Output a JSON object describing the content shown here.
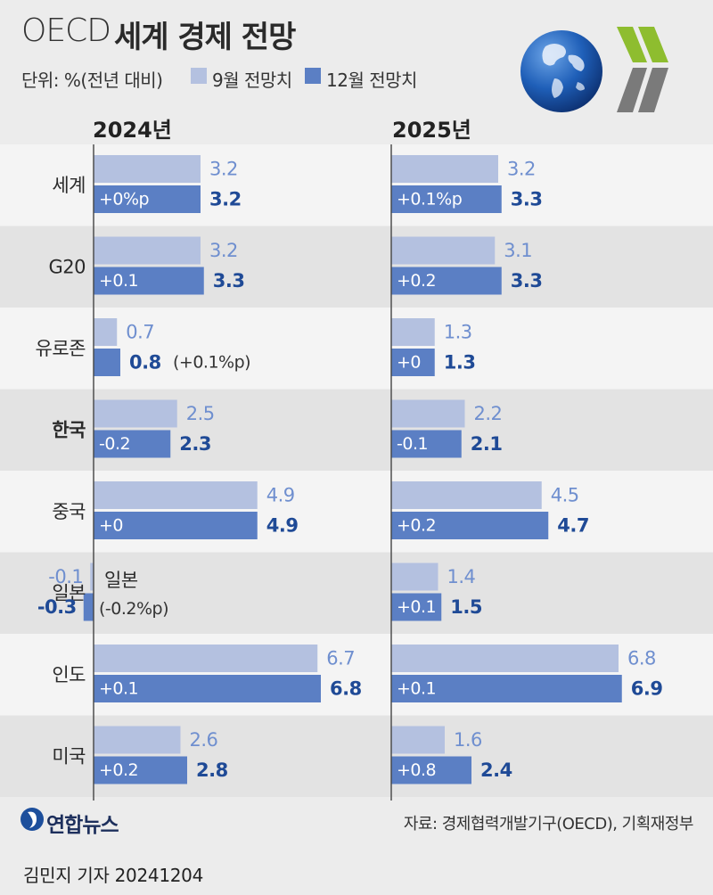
{
  "header": {
    "title_latin": "OECD",
    "title_korean": "세계 경제 전망",
    "unit_label": "단위: %(전년 대비)",
    "legend": [
      {
        "label": "9월 전망치",
        "color": "#b4c1e0"
      },
      {
        "label": "12월 전망치",
        "color": "#5b7fc4"
      }
    ]
  },
  "logos": {
    "globe": "globe-icon",
    "oecd_chevrons": "chevron-right-icon"
  },
  "chart_data": {
    "type": "bar",
    "orientation": "horizontal",
    "categories": [
      "세계",
      "G20",
      "유로존",
      "한국",
      "중국",
      "일본",
      "인도",
      "미국"
    ],
    "highlight_category": "한국",
    "panels": [
      {
        "year_label": "2024년",
        "series": [
          {
            "name": "9월 전망치",
            "values": [
              3.2,
              3.2,
              0.7,
              2.5,
              4.9,
              -0.1,
              6.7,
              2.6
            ]
          },
          {
            "name": "12월 전망치",
            "values": [
              3.2,
              3.3,
              0.8,
              2.3,
              4.9,
              -0.3,
              6.8,
              2.8
            ]
          }
        ],
        "value_labels_sep": [
          "3.2",
          "3.2",
          "0.7",
          "2.5",
          "4.9",
          "-0.1",
          "6.7",
          "2.6"
        ],
        "value_labels_dec": [
          "3.2",
          "3.3",
          "0.8",
          "2.3",
          "4.9",
          "-0.3",
          "6.8",
          "2.8"
        ],
        "change_labels": [
          "+0%p",
          "+0.1",
          "(+0.1%p)",
          "-0.2",
          "+0",
          "(-0.2%p)",
          "+0.1",
          "+0.2"
        ]
      },
      {
        "year_label": "2025년",
        "series": [
          {
            "name": "9월 전망치",
            "values": [
              3.2,
              3.1,
              1.3,
              2.2,
              4.5,
              1.4,
              6.8,
              1.6
            ]
          },
          {
            "name": "12월 전망치",
            "values": [
              3.3,
              3.3,
              1.3,
              2.1,
              4.7,
              1.5,
              6.9,
              2.4
            ]
          }
        ],
        "value_labels_sep": [
          "3.2",
          "3.1",
          "1.3",
          "2.2",
          "4.5",
          "1.4",
          "6.8",
          "1.6"
        ],
        "value_labels_dec": [
          "3.3",
          "3.3",
          "1.3",
          "2.1",
          "4.7",
          "1.5",
          "6.9",
          "2.4"
        ],
        "change_labels": [
          "+0.1%p",
          "+0.2",
          "+0",
          "-0.1",
          "+0.2",
          "+0.1",
          "+0.1",
          "+0.8"
        ]
      }
    ]
  },
  "footer": {
    "brand": "연합뉴스",
    "source": "자료: 경제협력개발기구(OECD), 기획재정부",
    "reporter": "김민지 기자  20241204"
  }
}
